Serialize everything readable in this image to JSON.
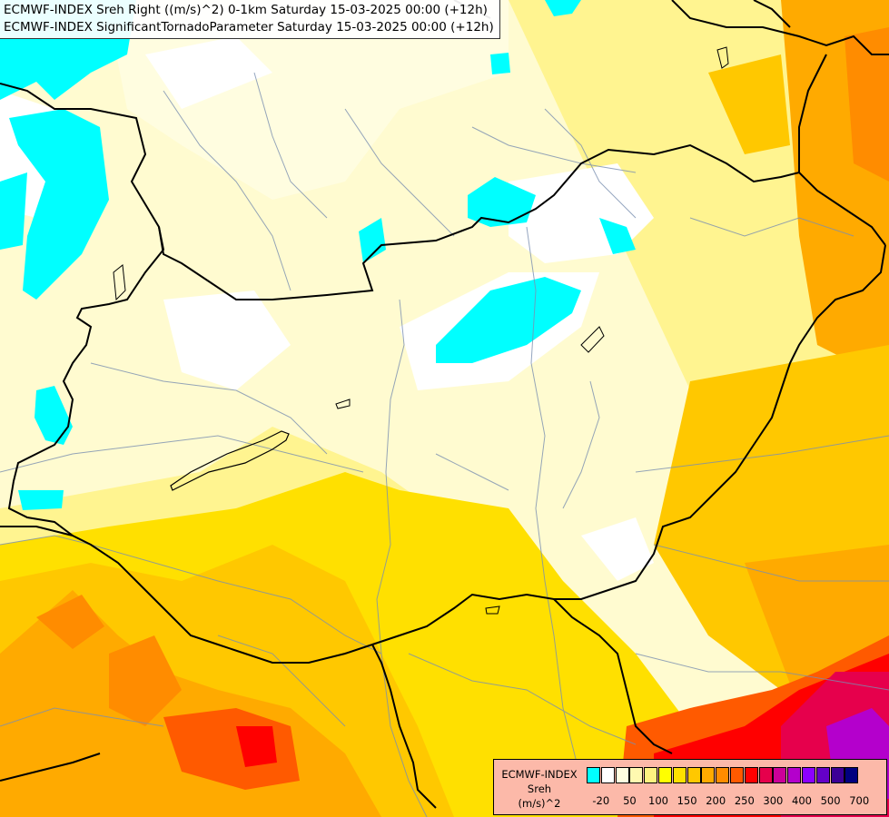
{
  "title": {
    "line1": "ECMWF-INDEX Sreh Right ((m/s)^2) 0-1km Saturday 15-03-2025 00:00 (+12h)",
    "line2": "ECMWF-INDEX SignificantTornadoParameter Saturday 15-03-2025 00:00 (+12h)"
  },
  "legend": {
    "model": "ECMWF-INDEX",
    "variable": "Sreh",
    "unit": "(m/s)^2",
    "colors": [
      "#00ffff",
      "#ffffff",
      "#fffde0",
      "#fff9b0",
      "#fff280",
      "#ffff00",
      "#ffe000",
      "#ffc800",
      "#ffaa00",
      "#ff8c00",
      "#ff5a00",
      "#ff0000",
      "#e6004c",
      "#cc0099",
      "#b400cc",
      "#8c00ff",
      "#6400c8",
      "#3c0096",
      "#000080"
    ],
    "ticks": [
      "-20",
      "50",
      "100",
      "150",
      "200",
      "250",
      "300",
      "400",
      "500",
      "700"
    ]
  }
}
